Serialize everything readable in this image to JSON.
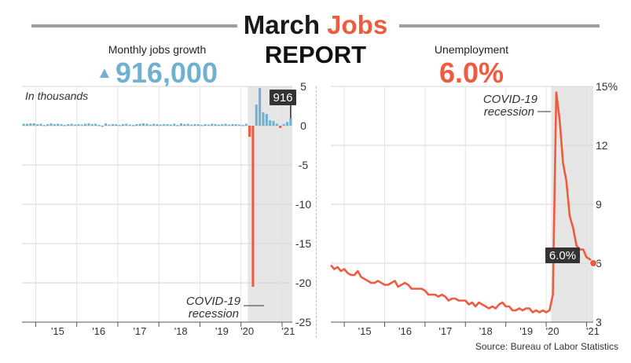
{
  "title": {
    "word1": "March",
    "word2": "Jobs",
    "line2": "REPORT"
  },
  "colors": {
    "accent": "#ef5b3f",
    "jobs_blue": "#6fb1cf",
    "recession_shade": "#e6e6e6",
    "dark_label": "#333333"
  },
  "source": "Source: Bureau of Labor Statistics",
  "chart_data": [
    {
      "type": "bar",
      "panel_title": "Monthly jobs growth",
      "headline_value": "916,000",
      "headline_icon": "up-triangle-icon",
      "annotation_units": "In thousands",
      "callout_label": "916",
      "recession_label": [
        "COVID-19",
        "recession"
      ],
      "ylim": [
        -25,
        5
      ],
      "yticks": [
        "5",
        "0",
        "-5",
        "-10",
        "-15",
        "-20",
        "-25"
      ],
      "xticks": [
        "'15",
        "'16",
        "'17",
        "'18",
        "'19",
        "'20",
        "'21"
      ],
      "grid": true,
      "months_start": "2014-09",
      "values": [
        0.25,
        0.25,
        0.3,
        0.3,
        0.2,
        0.25,
        0.1,
        0.2,
        0.3,
        0.2,
        0.25,
        0.2,
        0.1,
        0.2,
        0.25,
        0.15,
        0.2,
        0.15,
        0.25,
        0.3,
        0.2,
        0.25,
        0.1,
        0.0,
        0.3,
        0.15,
        0.2,
        0.2,
        0.1,
        0.2,
        0.25,
        0.15,
        0.1,
        0.2,
        0.25,
        0.3,
        0.25,
        0.15,
        0.25,
        0.2,
        0.15,
        0.2,
        0.2,
        0.15,
        0.25,
        0.1,
        0.3,
        0.2,
        0.25,
        0.15,
        0.2,
        0.2,
        0.1,
        0.2,
        0.15,
        0.25,
        0.2,
        0.15,
        0.2,
        0.25,
        0.15,
        0.2,
        0.2,
        0.15,
        0.1,
        0.25,
        -1.4,
        -20.5,
        2.7,
        4.8,
        1.7,
        1.5,
        0.7,
        0.6,
        0.26,
        -0.3,
        0.23,
        0.47,
        0.92
      ],
      "negative_color": "#ef5b3f",
      "positive_color": "#6fb1cf"
    },
    {
      "type": "line",
      "panel_title": "Unemployment",
      "headline_value": "6.0%",
      "callout_label": "6.0%",
      "recession_label": [
        "COVID-19",
        "recession"
      ],
      "ylim": [
        3,
        15
      ],
      "yticks": [
        "15%",
        "12",
        "9",
        "6",
        "3"
      ],
      "xticks": [
        "'15",
        "'16",
        "'17",
        "'18",
        "'19",
        "'20",
        "'21"
      ],
      "grid": true,
      "months_start": "2014-09",
      "values": [
        5.9,
        5.7,
        5.8,
        5.6,
        5.7,
        5.5,
        5.4,
        5.4,
        5.6,
        5.3,
        5.2,
        5.1,
        5.0,
        5.0,
        5.1,
        5.0,
        4.9,
        4.9,
        5.0,
        5.1,
        4.8,
        4.9,
        5.0,
        4.9,
        4.7,
        4.7,
        4.7,
        4.7,
        4.6,
        4.4,
        4.4,
        4.4,
        4.3,
        4.4,
        4.3,
        4.1,
        4.2,
        4.2,
        4.1,
        4.1,
        4.1,
        3.9,
        4.0,
        3.8,
        4.0,
        3.9,
        3.8,
        3.7,
        3.8,
        3.7,
        3.9,
        4.0,
        3.8,
        3.8,
        3.6,
        3.6,
        3.7,
        3.6,
        3.7,
        3.7,
        3.5,
        3.6,
        3.5,
        3.6,
        3.5,
        3.6,
        4.4,
        14.7,
        13.3,
        11.1,
        10.2,
        8.4,
        7.8,
        6.9,
        6.7,
        6.7,
        6.3,
        6.2,
        6.0
      ],
      "color": "#ef5b3f"
    }
  ]
}
